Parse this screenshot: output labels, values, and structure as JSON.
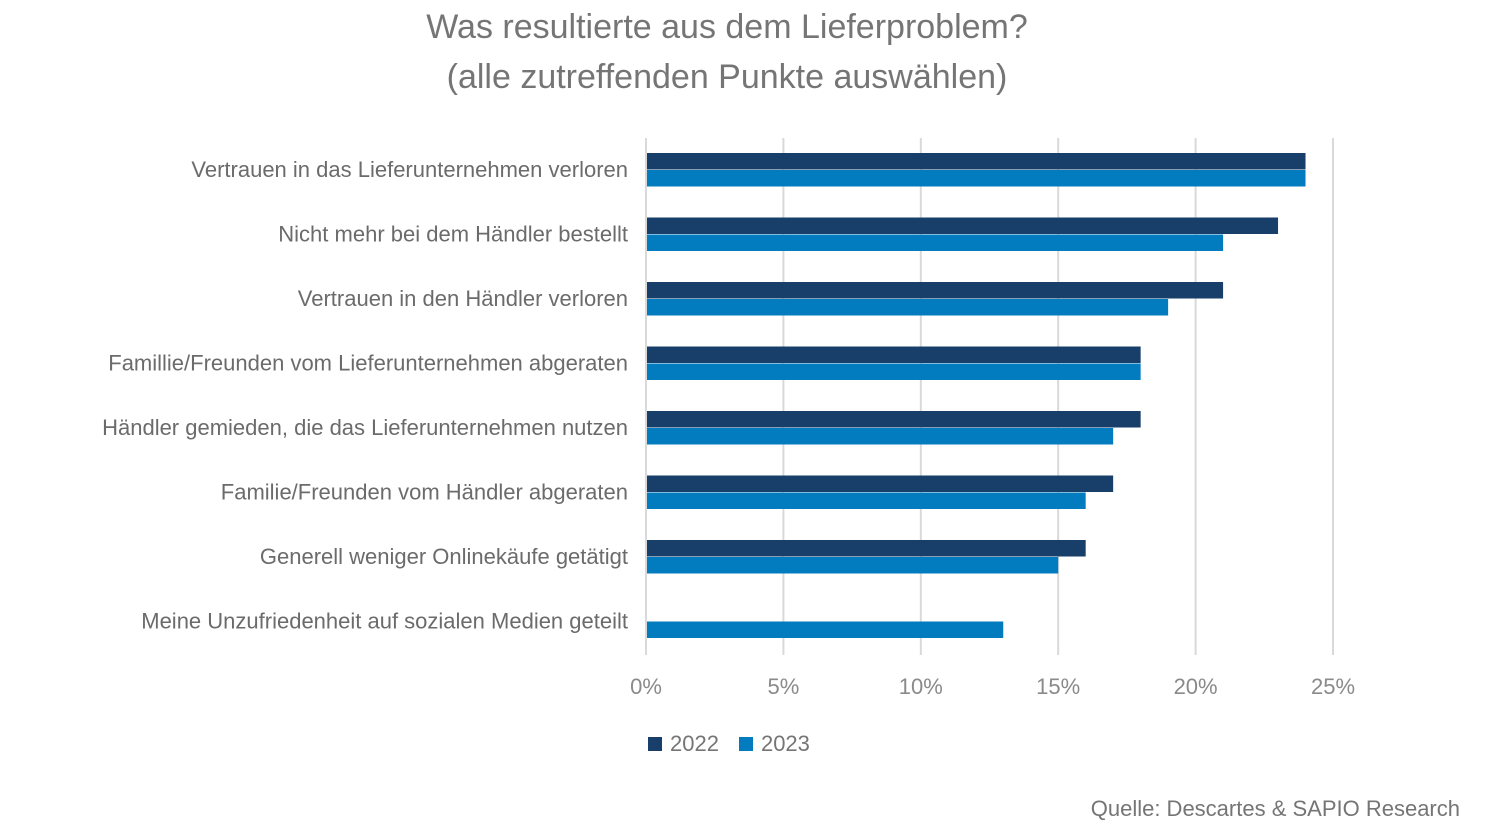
{
  "chart_data": {
    "type": "bar",
    "orientation": "horizontal",
    "title": "Was resultierte aus dem Lieferproblem?",
    "subtitle": "(alle zutreffenden Punkte auswählen)",
    "categories": [
      "Vertrauen in das Lieferunternehmen verloren",
      "Nicht mehr bei dem Händler bestellt",
      "Vertrauen in den Händler verloren",
      "Famillie/Freunden vom Lieferunternehmen abgeraten",
      "Händler gemieden, die das Lieferunternehmen nutzen",
      "Familie/Freunden vom Händler abgeraten",
      "Generell weniger Onlinekäufe getätigt",
      "Meine Unzufriedenheit auf sozialen Medien geteilt"
    ],
    "series": [
      {
        "name": "2022",
        "color": "#173f6a",
        "values": [
          24,
          23,
          21,
          18,
          18,
          17,
          16,
          null
        ]
      },
      {
        "name": "2023",
        "color": "#027bbf",
        "values": [
          24,
          21,
          19,
          18,
          17,
          16,
          15,
          13
        ]
      }
    ],
    "xlim": [
      0,
      25
    ],
    "xticks": [
      "0%",
      "5%",
      "10%",
      "15%",
      "20%",
      "25%"
    ],
    "xtick_values": [
      0,
      5,
      10,
      15,
      20,
      25
    ],
    "grid": "vertical",
    "legend": "bottom",
    "unit": "%"
  },
  "source": "Quelle: Descartes & SAPIO Research"
}
